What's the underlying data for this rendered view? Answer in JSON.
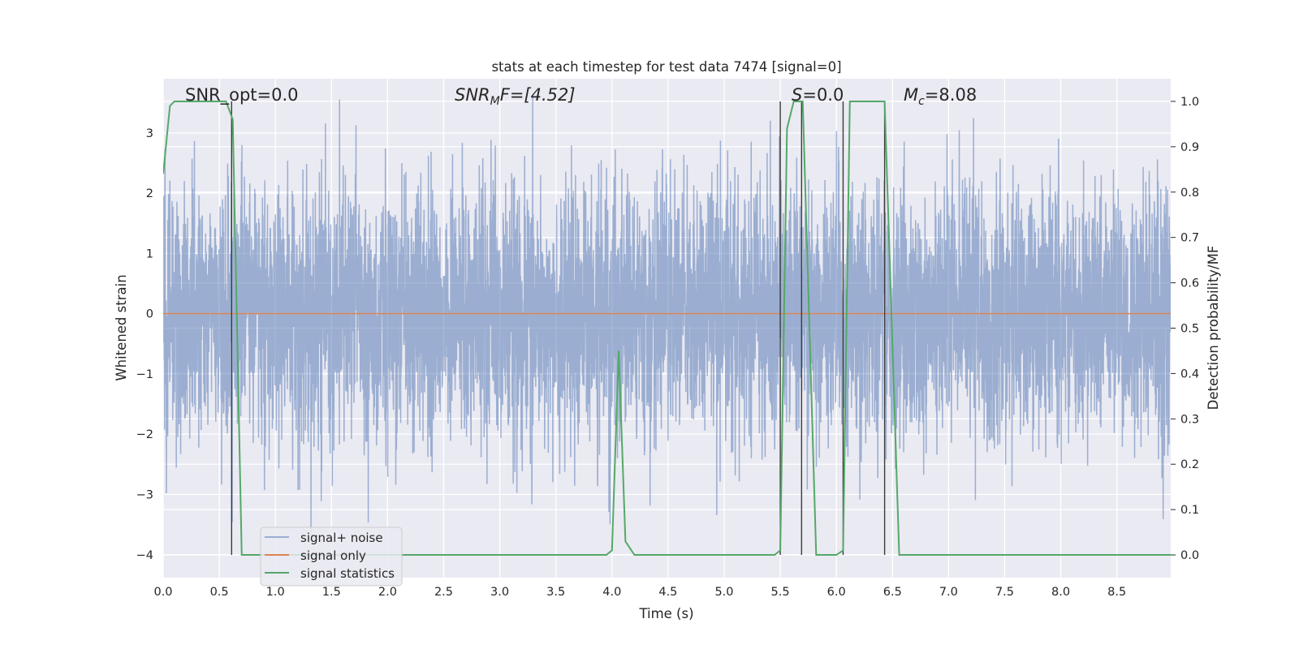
{
  "chart_data": {
    "type": "line",
    "title": "stats at each timestep for test data 7474 [signal=0]",
    "xlabel": "Time (s)",
    "ylabel": "Whitened strain",
    "y2label": "Detection probability/MF",
    "xlim": [
      0.0,
      8.98
    ],
    "ylim": [
      -4.38,
      3.9
    ],
    "y2lim": [
      -0.05,
      1.05
    ],
    "xticks": [
      "0.0",
      "0.5",
      "1.0",
      "1.5",
      "2.0",
      "2.5",
      "3.0",
      "3.5",
      "4.0",
      "4.5",
      "5.0",
      "5.5",
      "6.0",
      "6.5",
      "7.0",
      "7.5",
      "8.0",
      "8.5"
    ],
    "yticks": [
      "3",
      "2",
      "1",
      "0",
      "−1",
      "−2",
      "−3",
      "−4"
    ],
    "y2ticks": [
      "1.0",
      "0.9",
      "0.8",
      "0.7",
      "0.6",
      "0.5",
      "0.4",
      "0.3",
      "0.2",
      "0.1",
      "0.0"
    ],
    "grid": true,
    "legend_position": "lower-left",
    "annotations": {
      "snr_opt": "SNR_opt=0.0",
      "snr_mf_sym": "SNR",
      "snr_mf_sub": "M",
      "snr_mf_rest": "F=[4.52]",
      "s_sym": "S",
      "s_rest": "=0.0",
      "mc_sym": "M",
      "mc_sub": "c",
      "mc_rest": "=8.08"
    },
    "series": [
      {
        "name": "signal+ noise",
        "color": "#4c72b0",
        "description": "whitened noise, roughly ±1.5 dense with peaks to about ±3.5"
      },
      {
        "name": "signal only",
        "color": "#dd8452",
        "x": [
          0.0,
          8.98
        ],
        "y": [
          0.0,
          0.0
        ]
      },
      {
        "name": "signal statistics",
        "color": "#55a868",
        "x": [
          0.0,
          0.06,
          0.1,
          0.2,
          0.5,
          0.56,
          0.62,
          0.7,
          3.95,
          4.0,
          4.06,
          4.12,
          4.2,
          5.45,
          5.5,
          5.56,
          5.62,
          5.7,
          5.82,
          6.0,
          6.06,
          6.12,
          6.2,
          6.4,
          6.43,
          6.56,
          8.98
        ],
        "y": [
          0.84,
          0.99,
          1.0,
          1.0,
          1.0,
          1.0,
          0.96,
          0.0,
          0.0,
          0.01,
          0.45,
          0.03,
          0.0,
          0.0,
          0.01,
          0.94,
          1.0,
          1.0,
          0.0,
          0.0,
          0.01,
          1.0,
          1.0,
          1.0,
          1.0,
          0.0,
          0.0
        ]
      }
    ],
    "vlines": [
      0.61,
      5.5,
      5.69,
      6.06,
      6.43
    ],
    "vline_color": "#3b3b3b"
  }
}
